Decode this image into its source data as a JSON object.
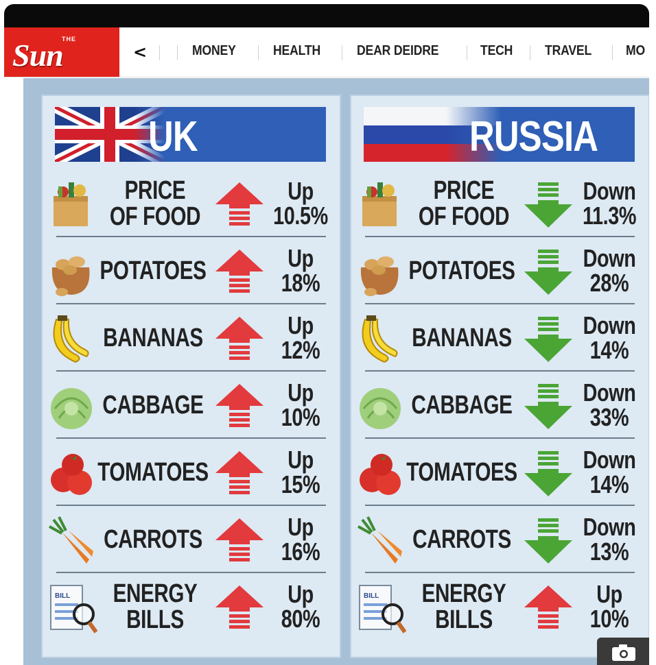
{
  "nav": {
    "logo_small": "THE",
    "logo": "Sun",
    "back_glyph": "<",
    "items": [
      "MONEY",
      "HEALTH",
      "DEAR DEIDRE",
      "TECH",
      "TRAVEL",
      "MO"
    ]
  },
  "uk": {
    "title": "UK",
    "rows": [
      {
        "label_lines": [
          "PRICE",
          "OF FOOD"
        ],
        "direction": "Up",
        "value": "10.5%",
        "icon": "grocery-bag-icon"
      },
      {
        "label_lines": [
          "POTATOES"
        ],
        "direction": "Up",
        "value": "18%",
        "icon": "potatoes-icon"
      },
      {
        "label_lines": [
          "BANANAS"
        ],
        "direction": "Up",
        "value": "12%",
        "icon": "bananas-icon"
      },
      {
        "label_lines": [
          "CABBAGE"
        ],
        "direction": "Up",
        "value": "10%",
        "icon": "cabbage-icon"
      },
      {
        "label_lines": [
          "TOMATOES"
        ],
        "direction": "Up",
        "value": "15%",
        "icon": "tomatoes-icon"
      },
      {
        "label_lines": [
          "CARROTS"
        ],
        "direction": "Up",
        "value": "16%",
        "icon": "carrots-icon"
      },
      {
        "label_lines": [
          "ENERGY",
          "BILLS"
        ],
        "direction": "Up",
        "value": "80%",
        "icon": "energy-bill-icon"
      }
    ]
  },
  "russia": {
    "title": "RUSSIA",
    "rows": [
      {
        "label_lines": [
          "PRICE",
          "OF FOOD"
        ],
        "direction": "Down",
        "value": "11.3%",
        "icon": "grocery-bag-icon"
      },
      {
        "label_lines": [
          "POTATOES"
        ],
        "direction": "Down",
        "value": "28%",
        "icon": "potatoes-icon"
      },
      {
        "label_lines": [
          "BANANAS"
        ],
        "direction": "Down",
        "value": "14%",
        "icon": "bananas-icon"
      },
      {
        "label_lines": [
          "CABBAGE"
        ],
        "direction": "Down",
        "value": "33%",
        "icon": "cabbage-icon"
      },
      {
        "label_lines": [
          "TOMATOES"
        ],
        "direction": "Down",
        "value": "14%",
        "icon": "tomatoes-icon"
      },
      {
        "label_lines": [
          "CARROTS"
        ],
        "direction": "Down",
        "value": "13%",
        "icon": "carrots-icon"
      },
      {
        "label_lines": [
          "ENERGY",
          "BILLS"
        ],
        "direction": "Up",
        "value": "10%",
        "icon": "energy-bill-icon"
      }
    ]
  },
  "colors": {
    "brand_red": "#e0231c",
    "banner_blue": "#2f5fb6",
    "up_arrow": "#e23a3d",
    "down_arrow": "#4aa535",
    "panel_bg": "#dde9f3"
  },
  "camera_icon": "camera-icon"
}
